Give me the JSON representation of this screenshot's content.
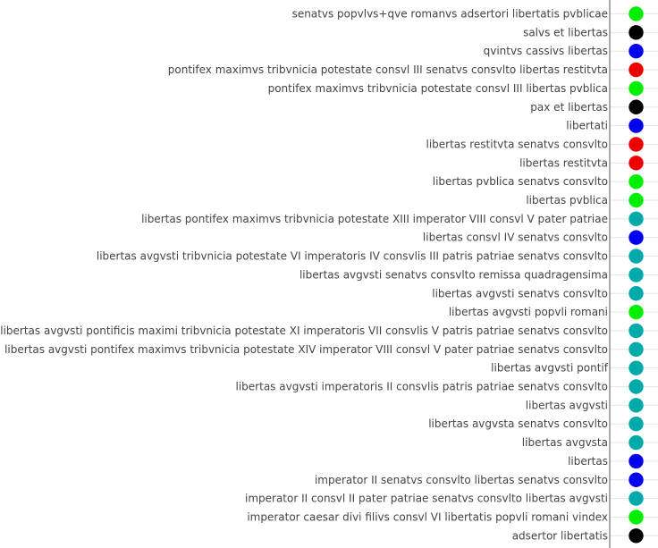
{
  "chart_data": {
    "type": "scatter",
    "title": "",
    "xlabel": "",
    "ylabel": "",
    "grid": true,
    "legend": "none",
    "categories": [
      "senatvs popvlvs+qve romanvs adsertori libertatis pvblicae",
      "salvs et libertas",
      "qvintvs cassivs libertas",
      "pontifex maximvs tribvnicia potestate consvl III senatvs consvlto libertas restitvta",
      "pontifex maximvs tribvnicia potestate consvl III libertas pvblica",
      "pax et libertas",
      "libertati",
      "libertas restitvta senatvs consvlto",
      "libertas restitvta",
      "libertas pvblica senatvs consvlto",
      "libertas pvblica",
      "libertas pontifex maximvs tribvnicia potestate XIII imperator VIII consvl V pater patriae",
      "libertas consvl IV senatvs consvlto",
      "libertas avgvsti tribvnicia potestate VI imperatoris IV consvlis III patris patriae senatvs consvlto",
      "libertas avgvsti senatvs consvlto remissa quadragensima",
      "libertas avgvsti senatvs consvlto",
      "libertas avgvsti popvli romani",
      "libertas avgvsti pontificis maximi tribvnicia potestate XI imperatoris VII consvlis V patris patriae senatvs consvlto",
      "libertas avgvsti pontifex maximvs tribvnicia potestate XIV imperator VIII consvl V pater patriae senatvs consvlto",
      "libertas avgvsti pontif",
      "libertas avgvsti imperatoris II consvlis patris patriae senatvs consvlto",
      "libertas avgvsti",
      "libertas avgvsta senatvs consvlto",
      "libertas avgvsta",
      "libertas",
      "imperator II senatvs consvlto libertas senatvs consvlto",
      "imperator II consvl II pater patriae senatvs consvlto libertas avgvsti",
      "imperator caesar divi filivs consvl VI libertatis popvli romani vindex",
      "adsertor libertatis"
    ],
    "point_colors": [
      "#00ee00",
      "#000000",
      "#0000ee",
      "#ee0000",
      "#00ee00",
      "#000000",
      "#0000ee",
      "#ee0000",
      "#ee0000",
      "#00ee00",
      "#00ee00",
      "#00aaaa",
      "#0000ee",
      "#00aaaa",
      "#00aaaa",
      "#00aaaa",
      "#00ee00",
      "#00aaaa",
      "#00aaaa",
      "#00aaaa",
      "#00aaaa",
      "#00aaaa",
      "#00aaaa",
      "#00aaaa",
      "#0000ee",
      "#0000ee",
      "#00aaaa",
      "#00ee00",
      "#000000"
    ]
  }
}
